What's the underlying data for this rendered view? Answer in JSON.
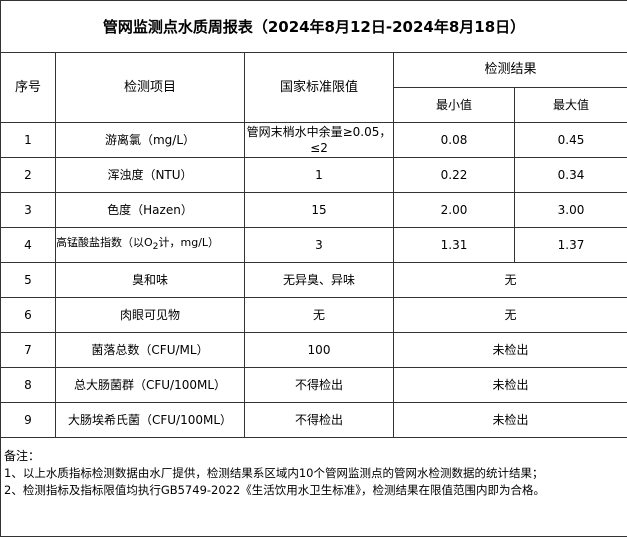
{
  "title": "管网监测点水质周报表（2024年8月12日-2024年8月18日）",
  "headers": {
    "seq": "序号",
    "item": "检测项目",
    "limit": "国家标准限值",
    "result": "检测结果",
    "min": "最小值",
    "max": "最大值"
  },
  "rows": [
    {
      "seq": "1",
      "item": "游离氯（mg/L）",
      "limit": "管网末梢水中余量≥0.05，≤2",
      "min": "0.08",
      "max": "0.45"
    },
    {
      "seq": "2",
      "item": "浑浊度（NTU）",
      "limit": "1",
      "min": "0.22",
      "max": "0.34"
    },
    {
      "seq": "3",
      "item": "色度（Hazen）",
      "limit": "15",
      "min": "2.00",
      "max": "3.00"
    },
    {
      "seq": "4",
      "item_pre": "高锰酸盐指数（以O",
      "item_sub": "2",
      "item_post": "计，mg/L）",
      "limit": "3",
      "min": "1.31",
      "max": "1.37"
    },
    {
      "seq": "5",
      "item": "臭和味",
      "limit": "无异臭、异味",
      "result": "无"
    },
    {
      "seq": "6",
      "item": "肉眼可见物",
      "limit": "无",
      "result": "无"
    },
    {
      "seq": "7",
      "item": "菌落总数（CFU/ML）",
      "limit": "100",
      "result": "未检出"
    },
    {
      "seq": "8",
      "item": "总大肠菌群（CFU/100ML）",
      "limit": "不得检出",
      "result": "未检出"
    },
    {
      "seq": "9",
      "item": "大肠埃希氏菌（CFU/100ML）",
      "limit": "不得检出",
      "result": "未检出"
    }
  ],
  "notes": {
    "label": "备注：",
    "lines": [
      "1、以上水质指标检测数据由水厂提供，检测结果系区域内10个管网监测点的管网水检测数据的统计结果；",
      "2、检测指标及指标限值均执行GB5749-2022《生活饮用水卫生标准》，检测结果在限值范围内即为合格。"
    ]
  }
}
